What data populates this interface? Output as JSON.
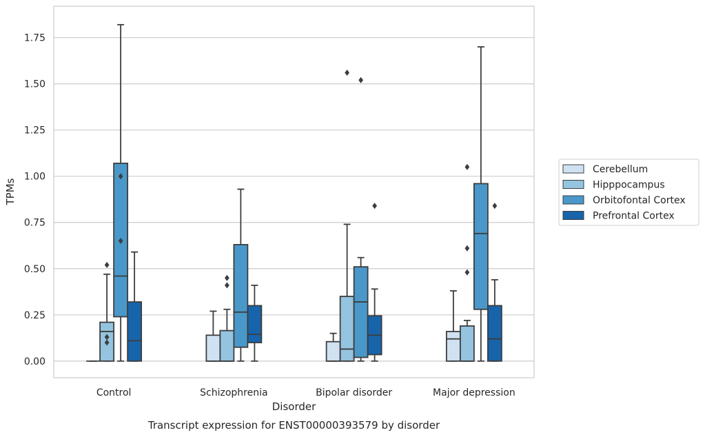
{
  "chart_data": {
    "type": "boxplot",
    "title": "",
    "caption": "Transcript expression for ENST00000393579 by disorder",
    "xlabel": "Disorder",
    "ylabel": "TPMs",
    "ylim": [
      -0.09,
      1.92
    ],
    "yticks": [
      0.0,
      0.25,
      0.5,
      0.75,
      1.0,
      1.25,
      1.5,
      1.75
    ],
    "ytick_labels": [
      "0.00",
      "0.25",
      "0.50",
      "0.75",
      "1.00",
      "1.25",
      "1.50",
      "1.75"
    ],
    "categories": [
      "Control",
      "Schizophrenia",
      "Bipolar disorder",
      "Major depression"
    ],
    "grid": "horizontal",
    "legend_position": "right",
    "series": [
      {
        "name": "Cerebellum",
        "color": "#d0e1f2",
        "boxes": [
          {
            "whislo": 0.0,
            "q1": 0.0,
            "med": 0.0,
            "q3": 0.0,
            "whishi": 0.0,
            "fliers": []
          },
          {
            "whislo": 0.0,
            "q1": 0.0,
            "med": 0.0,
            "q3": 0.14,
            "whishi": 0.27,
            "fliers": []
          },
          {
            "whislo": 0.0,
            "q1": 0.0,
            "med": 0.0,
            "q3": 0.105,
            "whishi": 0.15,
            "fliers": []
          },
          {
            "whislo": 0.0,
            "q1": 0.0,
            "med": 0.12,
            "q3": 0.16,
            "whishi": 0.38,
            "fliers": []
          }
        ]
      },
      {
        "name": "Hipppocampus",
        "color": "#94c4df",
        "boxes": [
          {
            "whislo": 0.0,
            "q1": 0.0,
            "med": 0.16,
            "q3": 0.21,
            "whishi": 0.47,
            "fliers": [
              0.1,
              0.13,
              0.52
            ]
          },
          {
            "whislo": 0.0,
            "q1": 0.0,
            "med": 0.0,
            "q3": 0.165,
            "whishi": 0.28,
            "fliers": [
              0.41,
              0.45
            ]
          },
          {
            "whislo": 0.0,
            "q1": 0.0,
            "med": 0.065,
            "q3": 0.35,
            "whishi": 0.74,
            "fliers": [
              1.56
            ]
          },
          {
            "whislo": 0.0,
            "q1": 0.0,
            "med": 0.0,
            "q3": 0.19,
            "whishi": 0.22,
            "fliers": [
              0.48,
              0.61,
              1.05
            ]
          }
        ]
      },
      {
        "name": "Orbitofontal Cortex",
        "color": "#4a98c9",
        "boxes": [
          {
            "whislo": 0.0,
            "q1": 0.24,
            "med": 0.46,
            "q3": 1.07,
            "whishi": 1.82,
            "fliers": [
              0.65,
              1.0
            ]
          },
          {
            "whislo": 0.0,
            "q1": 0.075,
            "med": 0.265,
            "q3": 0.63,
            "whishi": 0.93,
            "fliers": []
          },
          {
            "whislo": 0.0,
            "q1": 0.02,
            "med": 0.32,
            "q3": 0.51,
            "whishi": 0.56,
            "fliers": [
              1.52
            ]
          },
          {
            "whislo": 0.0,
            "q1": 0.28,
            "med": 0.69,
            "q3": 0.96,
            "whishi": 1.7,
            "fliers": []
          }
        ]
      },
      {
        "name": "Prefrontal Cortex",
        "color": "#1764ab",
        "boxes": [
          {
            "whislo": 0.0,
            "q1": 0.0,
            "med": 0.11,
            "q3": 0.32,
            "whishi": 0.59,
            "fliers": []
          },
          {
            "whislo": 0.0,
            "q1": 0.1,
            "med": 0.145,
            "q3": 0.3,
            "whishi": 0.41,
            "fliers": []
          },
          {
            "whislo": 0.0,
            "q1": 0.035,
            "med": 0.14,
            "q3": 0.245,
            "whishi": 0.39,
            "fliers": [
              0.84
            ]
          },
          {
            "whislo": 0.0,
            "q1": 0.0,
            "med": 0.12,
            "q3": 0.3,
            "whishi": 0.44,
            "fliers": [
              0.84
            ]
          }
        ]
      }
    ]
  }
}
